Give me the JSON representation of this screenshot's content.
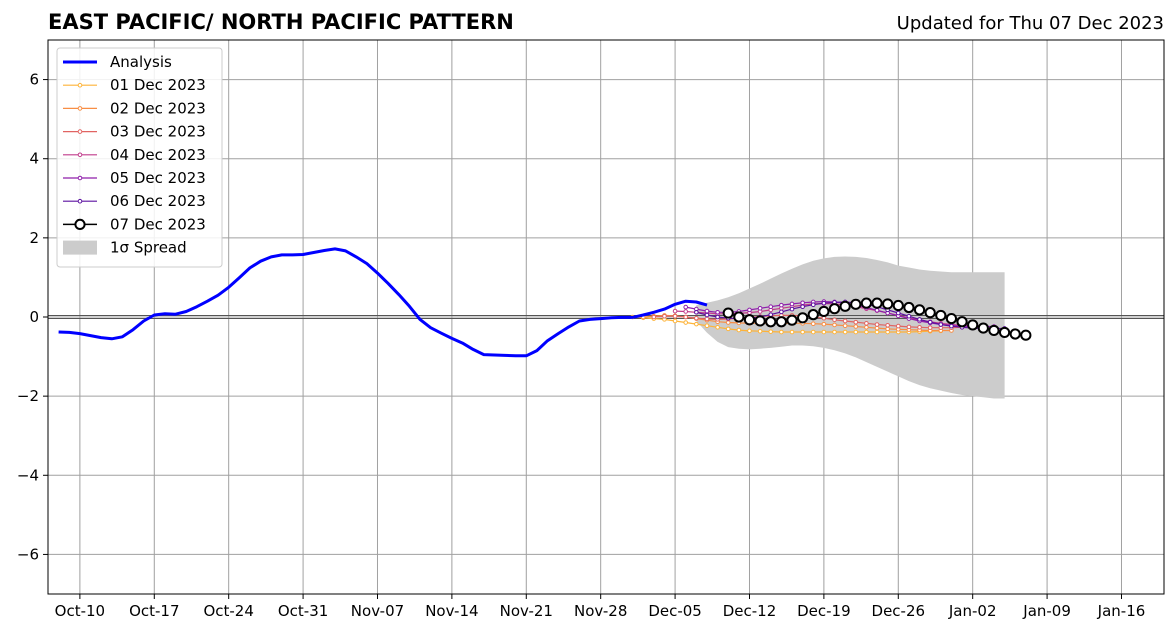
{
  "chart_data": {
    "type": "line",
    "title": "EAST PACIFIC/ NORTH PACIFIC PATTERN",
    "subtitle": "Updated for Thu 07 Dec 2023",
    "xlabel": "",
    "ylabel": "",
    "x_axis": {
      "type": "date",
      "range": [
        "2023-10-07",
        "2024-01-20"
      ],
      "ticks": [
        {
          "date": "2023-10-10",
          "label": "Oct-10"
        },
        {
          "date": "2023-10-17",
          "label": "Oct-17"
        },
        {
          "date": "2023-10-24",
          "label": "Oct-24"
        },
        {
          "date": "2023-10-31",
          "label": "Oct-31"
        },
        {
          "date": "2023-11-07",
          "label": "Nov-07"
        },
        {
          "date": "2023-11-14",
          "label": "Nov-14"
        },
        {
          "date": "2023-11-21",
          "label": "Nov-21"
        },
        {
          "date": "2023-11-28",
          "label": "Nov-28"
        },
        {
          "date": "2023-12-05",
          "label": "Dec-05"
        },
        {
          "date": "2023-12-12",
          "label": "Dec-12"
        },
        {
          "date": "2023-12-19",
          "label": "Dec-19"
        },
        {
          "date": "2023-12-26",
          "label": "Dec-26"
        },
        {
          "date": "2024-01-02",
          "label": "Jan-02"
        },
        {
          "date": "2024-01-09",
          "label": "Jan-09"
        },
        {
          "date": "2024-01-16",
          "label": "Jan-16"
        }
      ]
    },
    "y_axis": {
      "range": [
        -7,
        7
      ],
      "ticks": [
        {
          "value": -6,
          "label": "−6"
        },
        {
          "value": -4,
          "label": "−4"
        },
        {
          "value": -2,
          "label": "−2"
        },
        {
          "value": 0,
          "label": "0"
        },
        {
          "value": 2,
          "label": "2"
        },
        {
          "value": 4,
          "label": "4"
        },
        {
          "value": 6,
          "label": "6"
        }
      ]
    },
    "grid": true,
    "legend_position": "top-left",
    "analysis": {
      "name": "Analysis",
      "color": "#0000ff",
      "start": "2023-10-08",
      "values": [
        -0.38,
        -0.39,
        -0.42,
        -0.47,
        -0.52,
        -0.55,
        -0.5,
        -0.32,
        -0.1,
        0.05,
        0.08,
        0.07,
        0.14,
        0.26,
        0.4,
        0.55,
        0.75,
        0.99,
        1.24,
        1.41,
        1.52,
        1.57,
        1.57,
        1.58,
        1.63,
        1.68,
        1.72,
        1.67,
        1.52,
        1.35,
        1.11,
        0.85,
        0.57,
        0.27,
        -0.06,
        -0.27,
        -0.41,
        -0.54,
        -0.66,
        -0.82,
        -0.95,
        -0.96,
        -0.97,
        -0.98,
        -0.98,
        -0.85,
        -0.6,
        -0.42,
        -0.25,
        -0.1,
        -0.06,
        -0.04,
        -0.02,
        -0.01,
        -0.01,
        0.05,
        0.12,
        0.2,
        0.32,
        0.4,
        0.38,
        0.3
      ]
    },
    "spread": {
      "name": "1σ Spread",
      "color": "#cccccc",
      "start": "2023-12-07",
      "upper": [
        0.3,
        0.36,
        0.42,
        0.5,
        0.6,
        0.72,
        0.84,
        0.97,
        1.1,
        1.22,
        1.33,
        1.42,
        1.48,
        1.52,
        1.53,
        1.52,
        1.49,
        1.44,
        1.38,
        1.3,
        1.25,
        1.2,
        1.17,
        1.15,
        1.13,
        1.13,
        1.13,
        1.13,
        1.13,
        1.13
      ],
      "lower": [
        -0.1,
        -0.4,
        -0.63,
        -0.76,
        -0.8,
        -0.82,
        -0.8,
        -0.78,
        -0.75,
        -0.72,
        -0.72,
        -0.74,
        -0.78,
        -0.84,
        -0.92,
        -1.02,
        -1.14,
        -1.26,
        -1.38,
        -1.5,
        -1.62,
        -1.72,
        -1.8,
        -1.86,
        -1.92,
        -1.97,
        -2.0,
        -2.03,
        -2.06,
        -2.06
      ]
    },
    "series": [
      {
        "name": "01 Dec 2023",
        "color": "#fdb338",
        "start": "2023-12-01",
        "values": [
          0.0,
          -0.02,
          -0.04,
          -0.06,
          -0.1,
          -0.14,
          -0.18,
          -0.22,
          -0.26,
          -0.3,
          -0.33,
          -0.35,
          -0.36,
          -0.37,
          -0.38,
          -0.38,
          -0.38,
          -0.38,
          -0.38,
          -0.38,
          -0.38,
          -0.38,
          -0.38,
          -0.38,
          -0.38,
          -0.38,
          -0.38,
          -0.37,
          -0.36,
          -0.35
        ]
      },
      {
        "name": "02 Dec 2023",
        "color": "#f88e44",
        "start": "2023-12-02",
        "values": [
          0.0,
          0.02,
          0.04,
          0.03,
          0.0,
          -0.04,
          -0.08,
          -0.12,
          -0.14,
          -0.15,
          -0.16,
          -0.16,
          -0.16,
          -0.16,
          -0.16,
          -0.16,
          -0.17,
          -0.18,
          -0.2,
          -0.22,
          -0.24,
          -0.26,
          -0.28,
          -0.3,
          -0.31,
          -0.32,
          -0.33,
          -0.34,
          -0.34,
          -0.34
        ]
      },
      {
        "name": "03 Dec 2023",
        "color": "#e16462",
        "start": "2023-12-03",
        "values": [
          0.0,
          0.02,
          0.02,
          0.0,
          -0.03,
          -0.05,
          -0.06,
          -0.05,
          -0.03,
          -0.01,
          0.01,
          0.03,
          0.04,
          0.04,
          0.03,
          0.0,
          -0.03,
          -0.07,
          -0.1,
          -0.13,
          -0.16,
          -0.19,
          -0.21,
          -0.23,
          -0.25,
          -0.26,
          -0.27,
          -0.27,
          -0.27,
          -0.26
        ]
      },
      {
        "name": "04 Dec 2023",
        "color": "#c13b8b",
        "start": "2023-12-05",
        "values": [
          0.15,
          0.14,
          0.12,
          0.1,
          0.08,
          0.08,
          0.09,
          0.11,
          0.14,
          0.18,
          0.22,
          0.26,
          0.3,
          0.33,
          0.34,
          0.33,
          0.3,
          0.26,
          0.21,
          0.16,
          0.1,
          0.04,
          -0.02,
          -0.08,
          -0.12,
          -0.16,
          -0.19,
          -0.21,
          -0.22,
          -0.22
        ]
      },
      {
        "name": "05 Dec 2023",
        "color": "#8f1fab",
        "start": "2023-12-06",
        "values": [
          0.25,
          0.2,
          0.15,
          0.12,
          0.12,
          0.14,
          0.18,
          0.22,
          0.26,
          0.3,
          0.33,
          0.36,
          0.38,
          0.39,
          0.38,
          0.35,
          0.3,
          0.24,
          0.17,
          0.1,
          0.03,
          -0.04,
          -0.1,
          -0.15,
          -0.19,
          -0.22,
          -0.23,
          -0.24,
          -0.24,
          -0.24
        ]
      },
      {
        "name": "06 Dec 2023",
        "color": "#5c11a0",
        "start": "2023-12-07",
        "values": [
          0.12,
          0.05,
          0.0,
          -0.03,
          -0.04,
          -0.03,
          0.0,
          0.06,
          0.13,
          0.2,
          0.26,
          0.31,
          0.35,
          0.37,
          0.38,
          0.36,
          0.32,
          0.26,
          0.18,
          0.1,
          0.02,
          -0.06,
          -0.13,
          -0.19,
          -0.23,
          -0.26,
          -0.28,
          -0.29,
          -0.29,
          -0.29
        ]
      },
      {
        "name": "07 Dec 2023",
        "color": "#000000",
        "start": "2023-12-10",
        "values": [
          0.1,
          0.0,
          -0.07,
          -0.1,
          -0.12,
          -0.12,
          -0.08,
          -0.02,
          0.06,
          0.14,
          0.21,
          0.27,
          0.32,
          0.35,
          0.35,
          0.33,
          0.29,
          0.24,
          0.18,
          0.11,
          0.04,
          -0.04,
          -0.12,
          -0.2,
          -0.28,
          -0.34,
          -0.39,
          -0.43,
          -0.46
        ]
      }
    ]
  }
}
